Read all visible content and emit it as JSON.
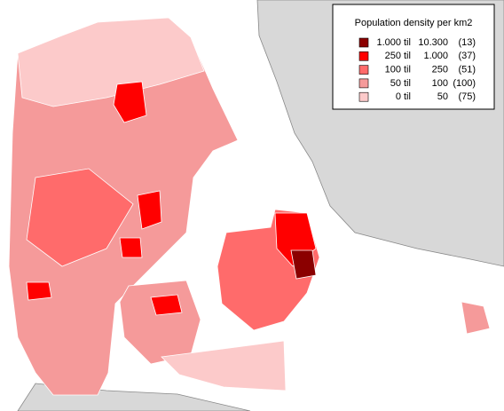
{
  "legend": {
    "title": "Population density per km2",
    "classes": [
      {
        "from": "1.000",
        "til": "til",
        "to": "10.300",
        "count": "(13)",
        "color": "#8b0000"
      },
      {
        "from": "250",
        "til": "til",
        "to": "1.000",
        "count": "(37)",
        "color": "#ff0000"
      },
      {
        "from": "100",
        "til": "til",
        "to": "250",
        "count": "(51)",
        "color": "#ff6b6b"
      },
      {
        "from": "50",
        "til": "til",
        "to": "100",
        "count": "(100)",
        "color": "#f59a9a"
      },
      {
        "from": "0",
        "til": "til",
        "to": "50",
        "count": "(75)",
        "color": "#fccaca"
      }
    ]
  }
}
